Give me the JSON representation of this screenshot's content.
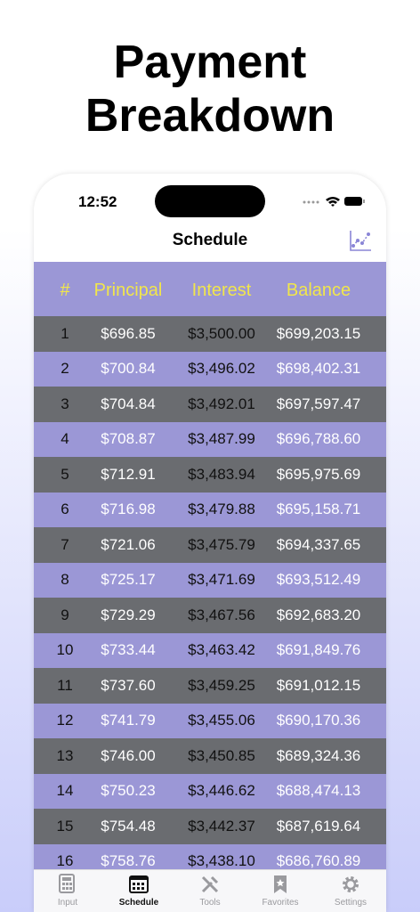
{
  "header": {
    "title": "Payment Breakdown"
  },
  "status": {
    "time": "12:52"
  },
  "nav": {
    "title": "Schedule"
  },
  "table": {
    "columns": [
      "#",
      "Principal",
      "Interest",
      "Balance"
    ],
    "rows": [
      [
        "1",
        "$696.85",
        "$3,500.00",
        "$699,203.15"
      ],
      [
        "2",
        "$700.84",
        "$3,496.02",
        "$698,402.31"
      ],
      [
        "3",
        "$704.84",
        "$3,492.01",
        "$697,597.47"
      ],
      [
        "4",
        "$708.87",
        "$3,487.99",
        "$696,788.60"
      ],
      [
        "5",
        "$712.91",
        "$3,483.94",
        "$695,975.69"
      ],
      [
        "6",
        "$716.98",
        "$3,479.88",
        "$695,158.71"
      ],
      [
        "7",
        "$721.06",
        "$3,475.79",
        "$694,337.65"
      ],
      [
        "8",
        "$725.17",
        "$3,471.69",
        "$693,512.49"
      ],
      [
        "9",
        "$729.29",
        "$3,467.56",
        "$692,683.20"
      ],
      [
        "10",
        "$733.44",
        "$3,463.42",
        "$691,849.76"
      ],
      [
        "11",
        "$737.60",
        "$3,459.25",
        "$691,012.15"
      ],
      [
        "12",
        "$741.79",
        "$3,455.06",
        "$690,170.36"
      ],
      [
        "13",
        "$746.00",
        "$3,450.85",
        "$689,324.36"
      ],
      [
        "14",
        "$750.23",
        "$3,446.62",
        "$688,474.13"
      ],
      [
        "15",
        "$754.48",
        "$3,442.37",
        "$687,619.64"
      ],
      [
        "16",
        "$758.76",
        "$3,438.10",
        "$686,760.89"
      ]
    ]
  },
  "tabs": [
    "Input",
    "Schedule",
    "Tools",
    "Favorites",
    "Settings"
  ]
}
